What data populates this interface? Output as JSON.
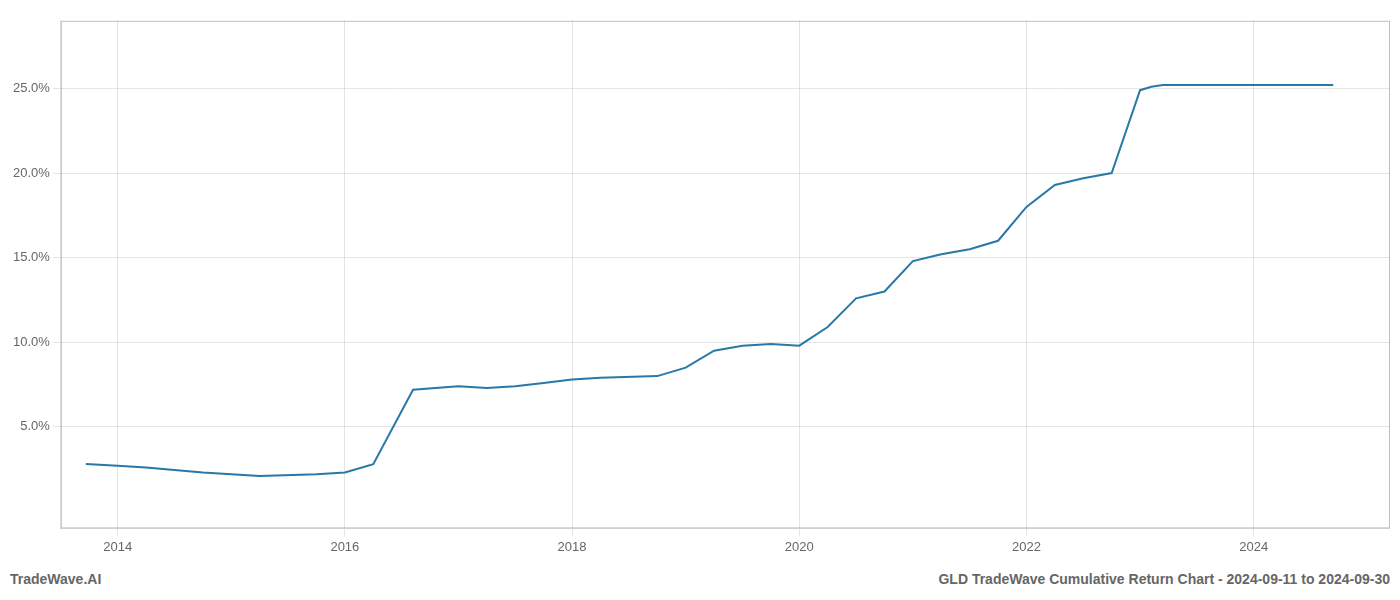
{
  "chart_data": {
    "type": "line",
    "title": "GLD TradeWave Cumulative Return Chart - 2024-09-11 to 2024-09-30",
    "annotations": [
      "TradeWave.AI"
    ],
    "x": [
      2013.72,
      2014.0,
      2014.25,
      2014.75,
      2015.0,
      2015.25,
      2015.75,
      2016.0,
      2016.25,
      2016.6,
      2017.0,
      2017.25,
      2017.5,
      2017.75,
      2018.0,
      2018.25,
      2018.75,
      2019.0,
      2019.25,
      2019.5,
      2019.75,
      2020.0,
      2020.25,
      2020.5,
      2020.75,
      2021.0,
      2021.25,
      2021.5,
      2021.75,
      2022.0,
      2022.25,
      2022.5,
      2022.75,
      2023.0,
      2023.1,
      2023.2,
      2023.6,
      2024.0,
      2024.7
    ],
    "values": [
      0.028,
      0.027,
      0.026,
      0.023,
      0.022,
      0.021,
      0.022,
      0.023,
      0.028,
      0.072,
      0.074,
      0.073,
      0.074,
      0.076,
      0.078,
      0.079,
      0.08,
      0.085,
      0.095,
      0.098,
      0.099,
      0.098,
      0.109,
      0.126,
      0.13,
      0.148,
      0.152,
      0.155,
      0.16,
      0.18,
      0.193,
      0.197,
      0.2,
      0.249,
      0.251,
      0.252,
      0.252,
      0.252,
      0.252
    ],
    "color": "#2878a8",
    "xlim": [
      2013.5,
      2025.2
    ],
    "ylim": [
      -0.01,
      0.29
    ],
    "xticks": [
      2014,
      2016,
      2018,
      2020,
      2022,
      2024
    ],
    "yticks": [
      {
        "value": 0.05,
        "label": "5.0%"
      },
      {
        "value": 0.1,
        "label": "10.0%"
      },
      {
        "value": 0.15,
        "label": "15.0%"
      },
      {
        "value": 0.2,
        "label": "20.0%"
      },
      {
        "value": 0.25,
        "label": "25.0%"
      }
    ],
    "grid": true
  }
}
